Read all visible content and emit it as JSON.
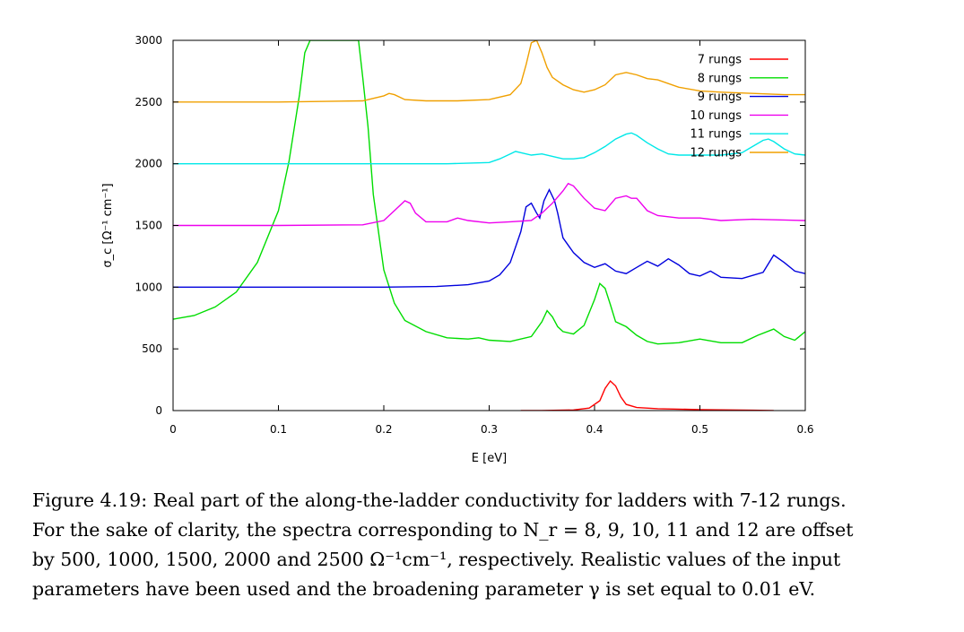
{
  "chart_data": {
    "type": "line",
    "xlabel": "E [eV]",
    "ylabel": "σ_c [Ω⁻¹ cm⁻¹]",
    "xlim": [
      0,
      0.6
    ],
    "ylim": [
      0,
      3000
    ],
    "xticks": [
      0,
      0.1,
      0.2,
      0.3,
      0.4,
      0.5,
      0.6
    ],
    "xtick_labels": [
      "0",
      "0.1",
      "0.2",
      "0.3",
      "0.4",
      "0.5",
      "0.6"
    ],
    "yticks": [
      0,
      500,
      1000,
      1500,
      2000,
      2500,
      3000
    ],
    "ytick_labels": [
      "0",
      "500",
      "1000",
      "1500",
      "2000",
      "2500",
      "3000"
    ],
    "grid": false,
    "legend_position": "top-right",
    "series": [
      {
        "name": "7 rungs",
        "color": "#ff0000",
        "x": [
          0.33,
          0.35,
          0.38,
          0.395,
          0.405,
          0.41,
          0.415,
          0.42,
          0.425,
          0.43,
          0.44,
          0.46,
          0.5,
          0.55,
          0.57
        ],
        "y": [
          0,
          0,
          5,
          20,
          80,
          180,
          240,
          200,
          110,
          50,
          25,
          15,
          8,
          3,
          0
        ]
      },
      {
        "name": "8 rungs",
        "color": "#00dd00",
        "x": [
          0,
          0.02,
          0.04,
          0.06,
          0.08,
          0.1,
          0.11,
          0.12,
          0.125,
          0.13,
          0.133,
          0.176,
          0.18,
          0.185,
          0.19,
          0.2,
          0.21,
          0.22,
          0.24,
          0.26,
          0.28,
          0.29,
          0.3,
          0.32,
          0.34,
          0.35,
          0.355,
          0.36,
          0.365,
          0.37,
          0.38,
          0.39,
          0.4,
          0.405,
          0.41,
          0.415,
          0.42,
          0.43,
          0.44,
          0.45,
          0.46,
          0.48,
          0.5,
          0.52,
          0.54,
          0.555,
          0.57,
          0.58,
          0.59,
          0.6
        ],
        "y": [
          740,
          770,
          840,
          960,
          1200,
          1620,
          2020,
          2560,
          2900,
          3000,
          3000,
          3000,
          2700,
          2300,
          1750,
          1140,
          870,
          730,
          640,
          590,
          580,
          590,
          570,
          560,
          600,
          720,
          810,
          760,
          680,
          640,
          620,
          690,
          900,
          1030,
          990,
          860,
          720,
          680,
          610,
          560,
          540,
          550,
          580,
          550,
          550,
          610,
          660,
          600,
          570,
          640
        ]
      },
      {
        "name": "9 rungs",
        "color": "#0000dd",
        "x": [
          0,
          0.1,
          0.2,
          0.25,
          0.28,
          0.3,
          0.31,
          0.32,
          0.33,
          0.335,
          0.34,
          0.345,
          0.348,
          0.352,
          0.357,
          0.362,
          0.365,
          0.37,
          0.38,
          0.39,
          0.4,
          0.41,
          0.42,
          0.43,
          0.44,
          0.45,
          0.46,
          0.47,
          0.48,
          0.49,
          0.5,
          0.51,
          0.52,
          0.54,
          0.56,
          0.57,
          0.58,
          0.59,
          0.6
        ],
        "y": [
          1000,
          1000,
          1000,
          1005,
          1020,
          1050,
          1100,
          1200,
          1450,
          1650,
          1680,
          1600,
          1560,
          1700,
          1790,
          1700,
          1600,
          1400,
          1280,
          1200,
          1160,
          1190,
          1130,
          1110,
          1160,
          1210,
          1170,
          1230,
          1180,
          1110,
          1090,
          1130,
          1080,
          1070,
          1120,
          1260,
          1200,
          1130,
          1110
        ]
      },
      {
        "name": "10 rungs",
        "color": "#ee00ee",
        "x": [
          0,
          0.1,
          0.18,
          0.2,
          0.21,
          0.22,
          0.225,
          0.23,
          0.24,
          0.26,
          0.27,
          0.28,
          0.3,
          0.32,
          0.34,
          0.35,
          0.36,
          0.37,
          0.375,
          0.38,
          0.39,
          0.4,
          0.41,
          0.42,
          0.43,
          0.435,
          0.44,
          0.45,
          0.46,
          0.48,
          0.5,
          0.52,
          0.55,
          0.6
        ],
        "y": [
          1500,
          1500,
          1505,
          1540,
          1620,
          1700,
          1680,
          1600,
          1530,
          1530,
          1560,
          1540,
          1520,
          1530,
          1540,
          1600,
          1680,
          1780,
          1840,
          1820,
          1720,
          1640,
          1620,
          1720,
          1740,
          1720,
          1720,
          1620,
          1580,
          1560,
          1560,
          1540,
          1550,
          1540
        ]
      },
      {
        "name": "11 rungs",
        "color": "#00e8e8",
        "x": [
          0,
          0.1,
          0.2,
          0.26,
          0.3,
          0.31,
          0.32,
          0.325,
          0.33,
          0.34,
          0.35,
          0.36,
          0.37,
          0.38,
          0.39,
          0.4,
          0.41,
          0.42,
          0.43,
          0.435,
          0.44,
          0.45,
          0.46,
          0.47,
          0.48,
          0.5,
          0.52,
          0.54,
          0.55,
          0.56,
          0.565,
          0.57,
          0.58,
          0.59,
          0.6
        ],
        "y": [
          2000,
          2000,
          2000,
          2000,
          2010,
          2040,
          2080,
          2100,
          2090,
          2070,
          2080,
          2060,
          2040,
          2040,
          2050,
          2090,
          2140,
          2200,
          2240,
          2250,
          2230,
          2170,
          2120,
          2080,
          2070,
          2070,
          2070,
          2090,
          2140,
          2190,
          2200,
          2180,
          2120,
          2080,
          2070
        ]
      },
      {
        "name": "12 rungs",
        "color": "#f0a000",
        "x": [
          0,
          0.1,
          0.18,
          0.2,
          0.205,
          0.21,
          0.22,
          0.24,
          0.27,
          0.3,
          0.32,
          0.33,
          0.335,
          0.34,
          0.345,
          0.35,
          0.355,
          0.36,
          0.37,
          0.38,
          0.39,
          0.4,
          0.41,
          0.42,
          0.43,
          0.44,
          0.45,
          0.46,
          0.48,
          0.5,
          0.52,
          0.55,
          0.58,
          0.6
        ],
        "y": [
          2500,
          2500,
          2510,
          2550,
          2570,
          2560,
          2520,
          2510,
          2510,
          2520,
          2560,
          2650,
          2800,
          2980,
          3000,
          2900,
          2780,
          2700,
          2640,
          2600,
          2580,
          2600,
          2640,
          2720,
          2740,
          2720,
          2690,
          2680,
          2620,
          2590,
          2580,
          2570,
          2560,
          2560
        ]
      }
    ]
  },
  "caption": {
    "line1": "Figure 4.19: Real part of the along-the-ladder conductivity for ladders with 7-12 rungs.",
    "line2": "For the sake of clarity, the spectra corresponding to N_r = 8, 9, 10, 11 and 12 are offset",
    "line3": "by 500, 1000, 1500, 2000 and 2500 Ω⁻¹cm⁻¹, respectively. Realistic values of the input",
    "line4": "parameters have been used and the broadening parameter γ is set equal to 0.01 eV."
  }
}
